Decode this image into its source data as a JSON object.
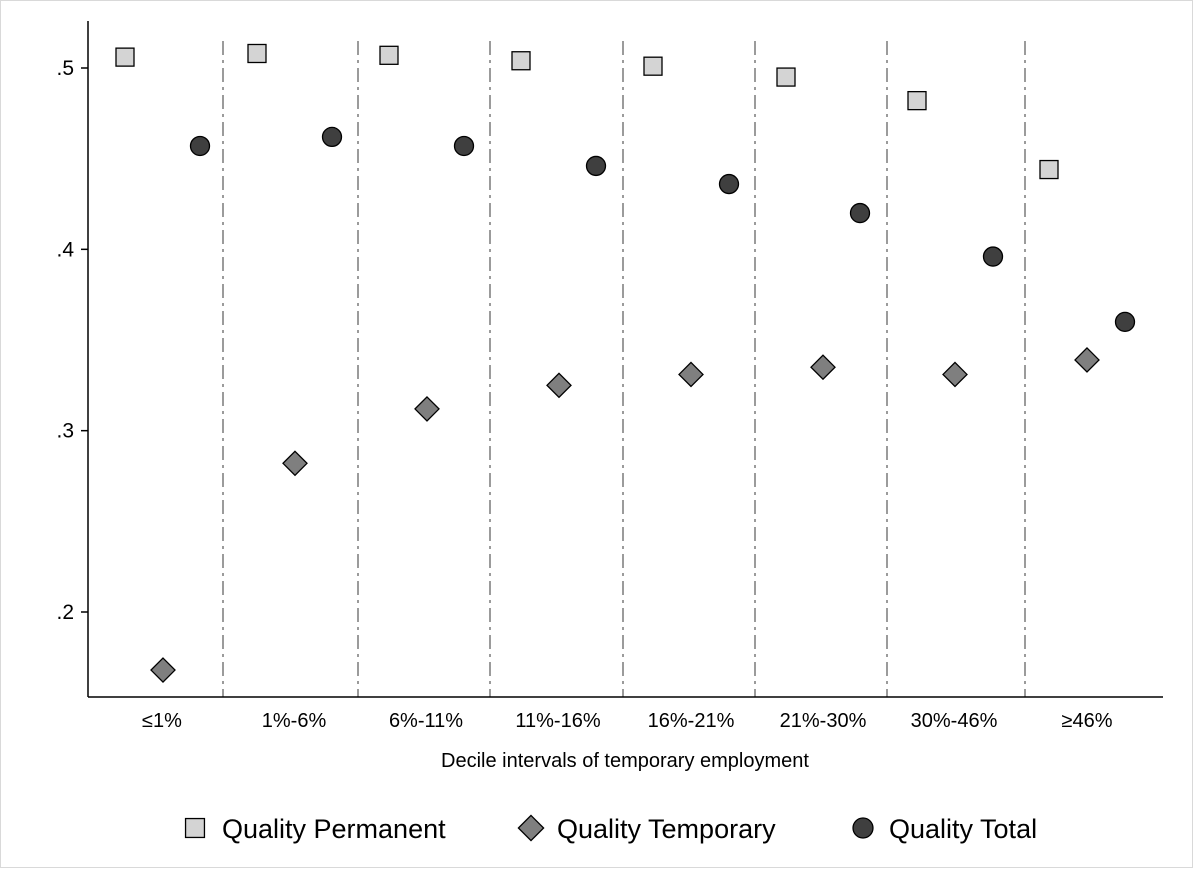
{
  "chart_data": {
    "type": "scatter",
    "xlabel": "Decile intervals of temporary employment",
    "ylabel": "",
    "categories": [
      "≤1%",
      "1%-6%",
      "6%-11%",
      "11%-16%",
      "16%-21%",
      "21%-30%",
      "30%-46%",
      "≥46%"
    ],
    "yticks": [
      0.2,
      0.3,
      0.4,
      0.5
    ],
    "ytick_labels": [
      ".2",
      ".3",
      ".4",
      ".5"
    ],
    "ylim": [
      0.155,
      0.52
    ],
    "grid": false,
    "category_separators": "dashed vertical lines",
    "legend_position": "bottom",
    "series": [
      {
        "name": "Quality Permanent",
        "marker": "square",
        "color": "#d4d4d4",
        "values": [
          0.506,
          0.508,
          0.507,
          0.504,
          0.501,
          0.495,
          0.482,
          0.444
        ]
      },
      {
        "name": "Quality Temporary",
        "marker": "diamond",
        "color": "#7f7f7f",
        "values": [
          0.168,
          0.282,
          0.312,
          0.325,
          0.331,
          0.335,
          0.331,
          0.339
        ]
      },
      {
        "name": "Quality Total",
        "marker": "circle",
        "color": "#3f3f3f",
        "values": [
          0.457,
          0.462,
          0.457,
          0.446,
          0.436,
          0.42,
          0.396,
          0.36
        ]
      }
    ]
  }
}
